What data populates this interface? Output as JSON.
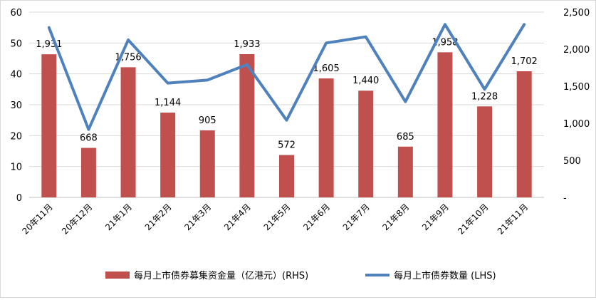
{
  "chart_data": {
    "type": "bar+line",
    "categories": [
      "20年11月",
      "20年12月",
      "21年1月",
      "21年2月",
      "21年3月",
      "21年4月",
      "21年5月",
      "21年6月",
      "21年7月",
      "21年8月",
      "21年9月",
      "21年10月",
      "21年11月"
    ],
    "series": [
      {
        "name": "每月上市债券募集资金量（亿港元）(RHS)",
        "type": "bar",
        "axis": "right",
        "color": "#c0504d",
        "values": [
          1931,
          668,
          1756,
          1144,
          905,
          1933,
          572,
          1605,
          1440,
          685,
          1958,
          1228,
          1702
        ],
        "labels": [
          "1,931",
          "668",
          "1,756",
          "1,144",
          "905",
          "1,933",
          "572",
          "1,605",
          "1,440",
          "685",
          "1,958",
          "1,228",
          "1,702"
        ]
      },
      {
        "name": "每月上市债券数量 (LHS)",
        "type": "line",
        "axis": "left",
        "color": "#4f81bd",
        "values": [
          55,
          22,
          51,
          37,
          38,
          43,
          25,
          50,
          52,
          31,
          56,
          35,
          56
        ]
      }
    ],
    "left_axis": {
      "min": 0,
      "max": 60,
      "ticks": [
        "0",
        "10",
        "20",
        "30",
        "40",
        "50",
        "60"
      ],
      "tick_values": [
        0,
        10,
        20,
        30,
        40,
        50,
        60
      ]
    },
    "right_axis": {
      "min": 0,
      "max": 2500,
      "ticks": [
        "-",
        "500",
        "1,000",
        "1,500",
        "2,000",
        "2,500"
      ],
      "tick_values": [
        0,
        500,
        1000,
        1500,
        2000,
        2500
      ]
    },
    "grid": true,
    "legend_position": "bottom"
  }
}
